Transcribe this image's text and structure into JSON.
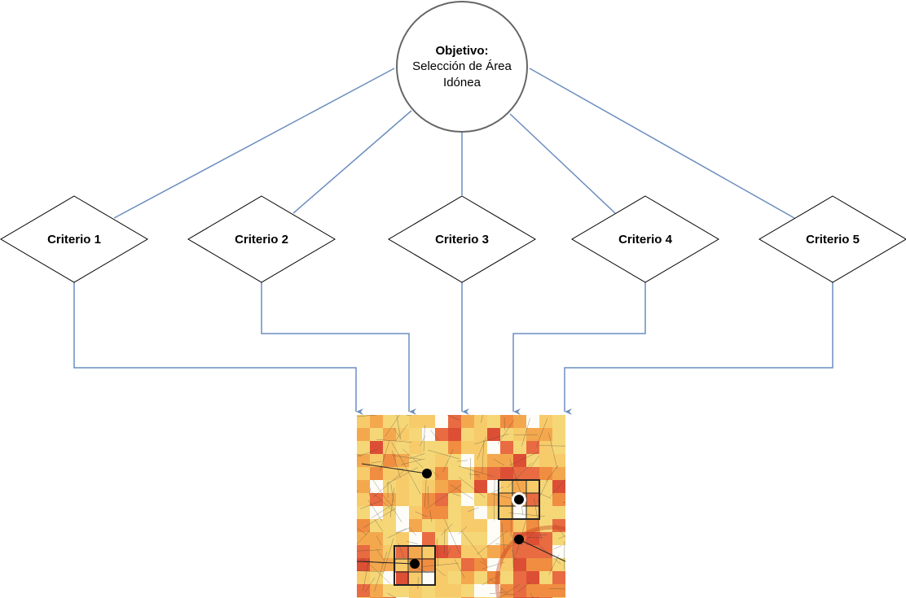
{
  "goal": {
    "title": "Objetivo:",
    "line1": "Selección de Área",
    "line2": "Idónea"
  },
  "criteria": [
    {
      "label": "Criterio 1"
    },
    {
      "label": "Criterio 2"
    },
    {
      "label": "Criterio 3"
    },
    {
      "label": "Criterio 4"
    },
    {
      "label": "Criterio 5"
    }
  ],
  "colors": {
    "connector": "#6c8ebf",
    "outline": "#666666",
    "heat_low": "#f5d36a",
    "heat_mid": "#f39c3a",
    "heat_high": "#d8341c",
    "marker": "#000000"
  },
  "map": {
    "description_icon": "heatmap-grid-over-street-map",
    "marked_points": 4
  }
}
